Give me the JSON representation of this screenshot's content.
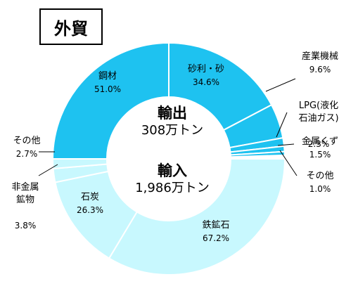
{
  "title": "外貿",
  "chart_data": [
    {
      "type": "pie",
      "name": "輸出",
      "total_label": "308万トン",
      "unit": "%",
      "start": "12 o'clock",
      "direction": "clockwise",
      "categories": [
        "砂利・砂",
        "産業機械",
        "LPG(液化石油ガス)",
        "金属くず",
        "その他",
        "鋼材"
      ],
      "display_labels": [
        "砂利・砂",
        "産業機械",
        "LPG(液化\n石油ガス)",
        "金属くず",
        "その他",
        "鋼材"
      ],
      "values": [
        34.6,
        9.6,
        2.3,
        1.5,
        1.0,
        51.0
      ],
      "value_labels": [
        "34.6%",
        "9.6%",
        "2.3%",
        "1.5%",
        "1.0%",
        "51.0%"
      ]
    },
    {
      "type": "pie",
      "name": "輸入",
      "total_label": "1,986万トン",
      "unit": "%",
      "start": "3 o'clock",
      "direction": "clockwise",
      "categories": [
        "鉄鉱石",
        "石炭",
        "非金属鉱物",
        "その他"
      ],
      "display_labels": [
        "鉄鉱石",
        "石炭",
        "非金属\n鉱物",
        "その他"
      ],
      "values": [
        67.2,
        26.3,
        3.8,
        2.7
      ],
      "value_labels": [
        "67.2%",
        "26.3%",
        "3.8%",
        "2.7%"
      ]
    }
  ],
  "colors": {
    "export": "#1ec2f0",
    "import": "#c8f8fe",
    "divider": "#ffffff",
    "leader": "#000000"
  }
}
